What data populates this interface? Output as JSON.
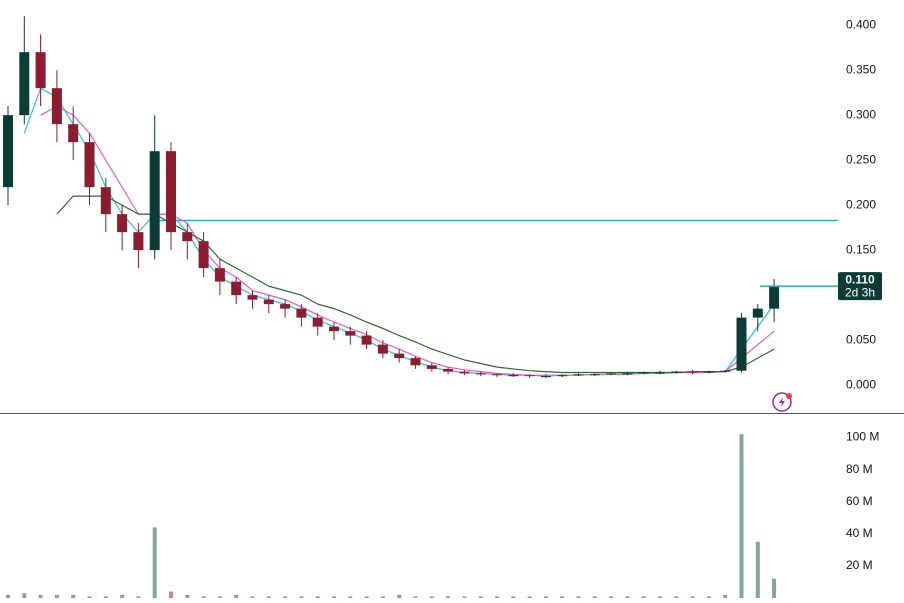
{
  "chart_data": {
    "type": "candlestick",
    "ylim": [
      -0.031,
      0.428
    ],
    "yticks": [
      {
        "value": 0.4,
        "label": "0.400"
      },
      {
        "value": 0.35,
        "label": "0.350"
      },
      {
        "value": 0.3,
        "label": "0.300"
      },
      {
        "value": 0.25,
        "label": "0.250"
      },
      {
        "value": 0.2,
        "label": "0.200"
      },
      {
        "value": 0.15,
        "label": "0.150"
      },
      {
        "value": 0.1,
        "label": "0.100"
      },
      {
        "value": 0.05,
        "label": "0.050"
      },
      {
        "value": 0,
        "label": "0.000"
      }
    ],
    "up_color": "#0d3b36",
    "down_color": "#8c1c2f",
    "open": [
      0.22,
      0.3,
      0.37,
      0.33,
      0.29,
      0.27,
      0.22,
      0.19,
      0.17,
      0.15,
      0.26,
      0.17,
      0.16,
      0.13,
      0.115,
      0.1,
      0.095,
      0.09,
      0.085,
      0.075,
      0.065,
      0.06,
      0.055,
      0.045,
      0.035,
      0.03,
      0.022,
      0.018,
      0.015,
      0.013,
      0.012,
      0.011,
      0.011,
      0.01,
      0.01,
      0.011,
      0.012,
      0.012,
      0.013,
      0.013,
      0.014,
      0.014,
      0.015,
      0.014,
      0.015,
      0.016,
      0.075,
      0.085
    ],
    "high": [
      0.31,
      0.41,
      0.39,
      0.35,
      0.31,
      0.28,
      0.23,
      0.2,
      0.18,
      0.3,
      0.27,
      0.18,
      0.17,
      0.14,
      0.12,
      0.105,
      0.1,
      0.095,
      0.09,
      0.08,
      0.07,
      0.065,
      0.06,
      0.05,
      0.04,
      0.032,
      0.025,
      0.02,
      0.017,
      0.015,
      0.013,
      0.013,
      0.012,
      0.012,
      0.012,
      0.013,
      0.013,
      0.014,
      0.015,
      0.015,
      0.016,
      0.016,
      0.017,
      0.016,
      0.017,
      0.08,
      0.09,
      0.118
    ],
    "low": [
      0.2,
      0.29,
      0.31,
      0.27,
      0.25,
      0.2,
      0.17,
      0.15,
      0.13,
      0.14,
      0.15,
      0.14,
      0.12,
      0.1,
      0.09,
      0.085,
      0.08,
      0.075,
      0.065,
      0.055,
      0.05,
      0.045,
      0.04,
      0.03,
      0.025,
      0.018,
      0.015,
      0.012,
      0.011,
      0.01,
      0.009,
      0.009,
      0.008,
      0.008,
      0.009,
      0.01,
      0.01,
      0.011,
      0.011,
      0.012,
      0.012,
      0.013,
      0.012,
      0.013,
      0.014,
      0.014,
      0.06,
      0.07
    ],
    "close": [
      0.3,
      0.37,
      0.33,
      0.29,
      0.27,
      0.22,
      0.19,
      0.17,
      0.15,
      0.26,
      0.17,
      0.16,
      0.13,
      0.115,
      0.1,
      0.095,
      0.09,
      0.085,
      0.075,
      0.065,
      0.06,
      0.055,
      0.045,
      0.035,
      0.03,
      0.022,
      0.018,
      0.015,
      0.013,
      0.012,
      0.011,
      0.011,
      0.01,
      0.01,
      0.011,
      0.012,
      0.012,
      0.013,
      0.013,
      0.014,
      0.014,
      0.015,
      0.014,
      0.015,
      0.016,
      0.075,
      0.085,
      0.11
    ],
    "series": [
      {
        "color": "#26c6da",
        "values": [
          null,
          0.28,
          0.33,
          0.32,
          0.29,
          0.26,
          0.22,
          0.19,
          0.17,
          0.19,
          0.19,
          0.17,
          0.14,
          0.12,
          0.11,
          0.1,
          0.095,
          0.09,
          0.082,
          0.072,
          0.065,
          0.058,
          0.05,
          0.04,
          0.033,
          0.026,
          0.02,
          0.016,
          0.014,
          0.013,
          0.012,
          0.011,
          0.011,
          0.01,
          0.011,
          0.011,
          0.012,
          0.012,
          0.013,
          0.013,
          0.014,
          0.014,
          0.014,
          0.015,
          0.015,
          0.04,
          0.065,
          0.09
        ]
      },
      {
        "color": "#e55fc8",
        "values": [
          null,
          null,
          0.3,
          0.31,
          0.3,
          0.28,
          0.25,
          0.22,
          0.19,
          0.19,
          0.19,
          0.18,
          0.15,
          0.13,
          0.12,
          0.105,
          0.1,
          0.095,
          0.087,
          0.078,
          0.07,
          0.063,
          0.056,
          0.047,
          0.04,
          0.032,
          0.025,
          0.02,
          0.017,
          0.015,
          0.013,
          0.012,
          0.011,
          0.011,
          0.011,
          0.011,
          0.012,
          0.012,
          0.012,
          0.013,
          0.013,
          0.014,
          0.014,
          0.014,
          0.015,
          0.03,
          0.045,
          0.06
        ]
      },
      {
        "color": "#2e6b2e",
        "values": [
          null,
          null,
          null,
          0.19,
          0.21,
          0.21,
          0.21,
          0.2,
          0.19,
          0.19,
          0.18,
          0.17,
          0.16,
          0.14,
          0.13,
          0.12,
          0.11,
          0.105,
          0.1,
          0.09,
          0.085,
          0.078,
          0.07,
          0.063,
          0.055,
          0.048,
          0.04,
          0.034,
          0.028,
          0.024,
          0.02,
          0.018,
          0.016,
          0.015,
          0.014,
          0.014,
          0.014,
          0.014,
          0.014,
          0.014,
          0.014,
          0.014,
          0.015,
          0.015,
          0.015,
          0.02,
          0.03,
          0.04
        ]
      }
    ],
    "level_line": {
      "value": 0.183,
      "color": "#1fb0d0"
    },
    "last_price": {
      "value": 0.11,
      "label": "0.110"
    },
    "countdown": "2d 3h",
    "volume": {
      "ylim": [
        0,
        114
      ],
      "yticks": [
        {
          "value": 100,
          "label": "100 M"
        },
        {
          "value": 80,
          "label": "80 M"
        },
        {
          "value": 60,
          "label": "60 M"
        },
        {
          "value": 40,
          "label": "40 M"
        },
        {
          "value": 20,
          "label": "20 M"
        }
      ],
      "values": [
        2,
        3,
        2,
        2,
        2,
        1,
        1,
        2,
        1,
        44,
        4,
        2,
        1,
        1,
        2,
        1,
        1,
        1,
        1,
        1,
        1,
        1,
        1,
        1,
        2,
        1,
        1,
        1,
        1,
        1,
        1,
        1,
        1,
        1,
        1,
        1,
        1,
        1,
        1,
        1,
        1,
        1,
        1,
        1,
        2,
        102,
        35,
        12
      ]
    }
  }
}
